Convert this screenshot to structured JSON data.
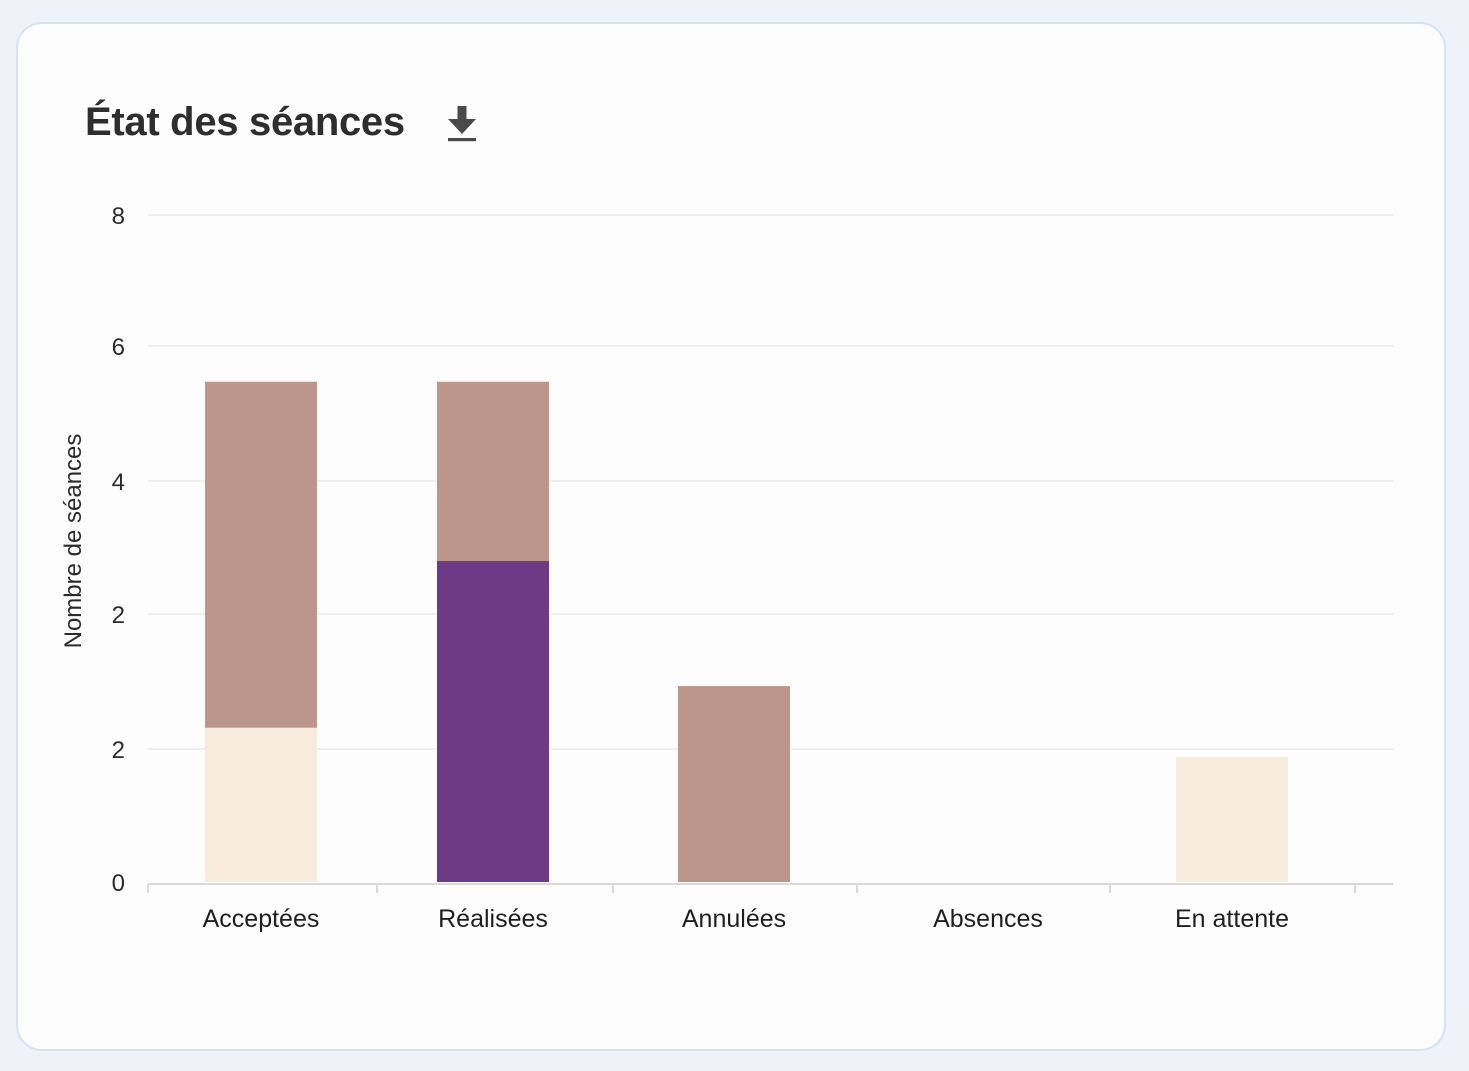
{
  "card": {
    "title": "État des séances",
    "download_icon": "download-icon"
  },
  "colors": {
    "background": "#eef3fa",
    "card": "#fdfdfd",
    "grid": "#e6e6e6",
    "axis": "#d9d9d9"
  },
  "chart_data": {
    "type": "bar",
    "stacked": true,
    "title": "",
    "xlabel": "",
    "ylabel": "Nombre de séances",
    "ylim": [
      0,
      8
    ],
    "grid": true,
    "legend": "none",
    "categories": [
      "Acceptées",
      "Réalisées",
      "Annulées",
      "Absences",
      "En attente"
    ],
    "y_ticks": [
      "0",
      "2",
      "2",
      "4",
      "6",
      "8"
    ],
    "series": [
      {
        "color": "#f6ebdc",
        "values": [
          1.85,
          0,
          0,
          0,
          1.5
        ]
      },
      {
        "color": "#6f3a85",
        "values": [
          0,
          3.85,
          0,
          0,
          0
        ]
      },
      {
        "color": "#bc968d",
        "values": [
          4.15,
          2.15,
          2.35,
          0,
          0
        ]
      }
    ]
  }
}
